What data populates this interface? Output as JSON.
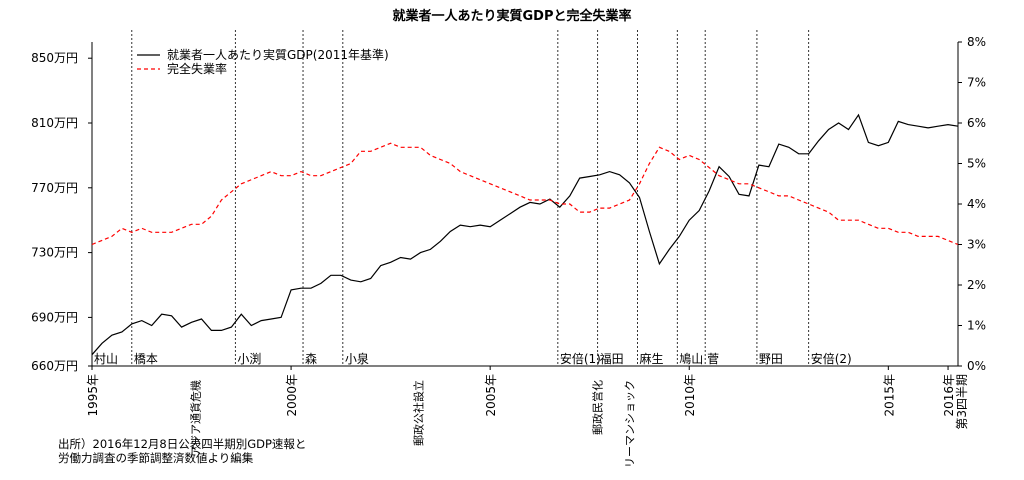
{
  "chart_data": {
    "type": "line",
    "title": "就業者一人あたり実質GDPと完全失業率",
    "x_range": [
      1995.0,
      2016.75
    ],
    "y_left": {
      "min": 660,
      "max": 860,
      "ticks": [
        660,
        690,
        730,
        770,
        810,
        850
      ],
      "tick_labels": [
        "660万円",
        "690万円",
        "730万円",
        "770万円",
        "810万円",
        "850万円"
      ]
    },
    "y_right": {
      "min": 0,
      "max": 8,
      "ticks": [
        0,
        1,
        2,
        3,
        4,
        5,
        6,
        7,
        8
      ],
      "tick_labels": [
        "0%",
        "1%",
        "2%",
        "3%",
        "4%",
        "5%",
        "6%",
        "7%",
        "8%"
      ]
    },
    "x_tick_labels": [
      {
        "x": 1995.0,
        "label": "1995年"
      },
      {
        "x": 2000.0,
        "label": "2000年"
      },
      {
        "x": 2005.0,
        "label": "2005年"
      },
      {
        "x": 2010.0,
        "label": "2010年"
      },
      {
        "x": 2015.0,
        "label": "2015年"
      },
      {
        "x": 2016.5,
        "label": "2016年第3四半期"
      }
    ],
    "events": [
      {
        "x": 1997.6,
        "label": "アジア通貨危機"
      },
      {
        "x": 2003.2,
        "label": "郵政公社設立"
      },
      {
        "x": 2007.7,
        "label": "郵政民営化"
      },
      {
        "x": 2008.5,
        "label": "リーマンショック"
      }
    ],
    "cabinets": [
      {
        "x": 1995.0,
        "label": "村山",
        "line": false
      },
      {
        "x": 1996.0,
        "label": "橋本",
        "line": true
      },
      {
        "x": 1998.6,
        "label": "小渕",
        "line": true
      },
      {
        "x": 2000.3,
        "label": "森",
        "line": true
      },
      {
        "x": 2001.3,
        "label": "小泉",
        "line": true
      },
      {
        "x": 2006.7,
        "label": "安倍(1)",
        "line": true
      },
      {
        "x": 2007.7,
        "label": "福田",
        "line": true
      },
      {
        "x": 2008.7,
        "label": "麻生",
        "line": true
      },
      {
        "x": 2009.7,
        "label": "鳩山",
        "line": true
      },
      {
        "x": 2010.4,
        "label": "菅",
        "line": true
      },
      {
        "x": 2011.7,
        "label": "野田",
        "line": true
      },
      {
        "x": 2013.0,
        "label": "安倍(2)",
        "line": true
      }
    ],
    "series": [
      {
        "name": "就業者一人あたり実質GDP(2011年基準)",
        "axis": "left",
        "color": "#000000",
        "style": "solid",
        "x": [
          1995.0,
          1995.25,
          1995.5,
          1995.75,
          1996.0,
          1996.25,
          1996.5,
          1996.75,
          1997.0,
          1997.25,
          1997.5,
          1997.75,
          1998.0,
          1998.25,
          1998.5,
          1998.75,
          1999.0,
          1999.25,
          1999.5,
          1999.75,
          2000.0,
          2000.25,
          2000.5,
          2000.75,
          2001.0,
          2001.25,
          2001.5,
          2001.75,
          2002.0,
          2002.25,
          2002.5,
          2002.75,
          2003.0,
          2003.25,
          2003.5,
          2003.75,
          2004.0,
          2004.25,
          2004.5,
          2004.75,
          2005.0,
          2005.25,
          2005.5,
          2005.75,
          2006.0,
          2006.25,
          2006.5,
          2006.75,
          2007.0,
          2007.25,
          2007.5,
          2007.75,
          2008.0,
          2008.25,
          2008.5,
          2008.75,
          2009.0,
          2009.25,
          2009.5,
          2009.75,
          2010.0,
          2010.25,
          2010.5,
          2010.75,
          2011.0,
          2011.25,
          2011.5,
          2011.75,
          2012.0,
          2012.25,
          2012.5,
          2012.75,
          2013.0,
          2013.25,
          2013.5,
          2013.75,
          2014.0,
          2014.25,
          2014.5,
          2014.75,
          2015.0,
          2015.25,
          2015.5,
          2015.75,
          2016.0,
          2016.25,
          2016.5,
          2016.75
        ],
        "values": [
          667,
          674,
          679,
          681,
          686,
          688,
          685,
          692,
          691,
          684,
          687,
          689,
          682,
          682,
          684,
          692,
          685,
          688,
          689,
          690,
          707,
          708,
          708,
          711,
          716,
          716,
          713,
          712,
          714,
          722,
          724,
          727,
          726,
          730,
          732,
          737,
          743,
          747,
          746,
          747,
          746,
          750,
          754,
          758,
          761,
          760,
          763,
          758,
          765,
          776,
          777,
          778,
          780,
          778,
          773,
          764,
          743,
          723,
          732,
          740,
          750,
          756,
          768,
          783,
          777,
          766,
          765,
          784,
          783,
          797,
          795,
          791,
          791,
          799,
          806,
          810,
          806,
          815,
          798,
          796,
          798,
          811,
          809,
          808,
          807,
          808,
          809,
          808
        ]
      },
      {
        "name": "完全失業率",
        "axis": "right",
        "color": "#ff0000",
        "style": "dashed",
        "x": [
          1995.0,
          1995.25,
          1995.5,
          1995.75,
          1996.0,
          1996.25,
          1996.5,
          1996.75,
          1997.0,
          1997.25,
          1997.5,
          1997.75,
          1998.0,
          1998.25,
          1998.5,
          1998.75,
          1999.0,
          1999.25,
          1999.5,
          1999.75,
          2000.0,
          2000.25,
          2000.5,
          2000.75,
          2001.0,
          2001.25,
          2001.5,
          2001.75,
          2002.0,
          2002.25,
          2002.5,
          2002.75,
          2003.0,
          2003.25,
          2003.5,
          2003.75,
          2004.0,
          2004.25,
          2004.5,
          2004.75,
          2005.0,
          2005.25,
          2005.5,
          2005.75,
          2006.0,
          2006.25,
          2006.5,
          2006.75,
          2007.0,
          2007.25,
          2007.5,
          2007.75,
          2008.0,
          2008.25,
          2008.5,
          2008.75,
          2009.0,
          2009.25,
          2009.5,
          2009.75,
          2010.0,
          2010.25,
          2010.5,
          2010.75,
          2011.0,
          2011.25,
          2011.5,
          2011.75,
          2012.0,
          2012.25,
          2012.5,
          2012.75,
          2013.0,
          2013.25,
          2013.5,
          2013.75,
          2014.0,
          2014.25,
          2014.5,
          2014.75,
          2015.0,
          2015.25,
          2015.5,
          2015.75,
          2016.0,
          2016.25,
          2016.5,
          2016.75
        ],
        "values": [
          3.0,
          3.1,
          3.2,
          3.4,
          3.3,
          3.4,
          3.3,
          3.3,
          3.3,
          3.4,
          3.5,
          3.5,
          3.7,
          4.1,
          4.3,
          4.5,
          4.6,
          4.7,
          4.8,
          4.7,
          4.7,
          4.8,
          4.7,
          4.7,
          4.8,
          4.9,
          5.0,
          5.3,
          5.3,
          5.4,
          5.5,
          5.4,
          5.4,
          5.4,
          5.2,
          5.1,
          5.0,
          4.8,
          4.7,
          4.6,
          4.5,
          4.4,
          4.3,
          4.2,
          4.1,
          4.1,
          4.1,
          4.0,
          4.0,
          3.8,
          3.8,
          3.9,
          3.9,
          4.0,
          4.1,
          4.5,
          5.0,
          5.4,
          5.3,
          5.1,
          5.2,
          5.1,
          4.9,
          4.7,
          4.6,
          4.5,
          4.5,
          4.4,
          4.3,
          4.2,
          4.2,
          4.1,
          4.0,
          3.9,
          3.8,
          3.6,
          3.6,
          3.6,
          3.5,
          3.4,
          3.4,
          3.3,
          3.3,
          3.2,
          3.2,
          3.2,
          3.1,
          3.0
        ]
      }
    ],
    "legend": {
      "position": "top-left"
    }
  },
  "source": {
    "line1": "出所）2016年12月8日公表四半期別GDP速報と",
    "line2": "労働力調査の季節調整済数値より編集"
  }
}
